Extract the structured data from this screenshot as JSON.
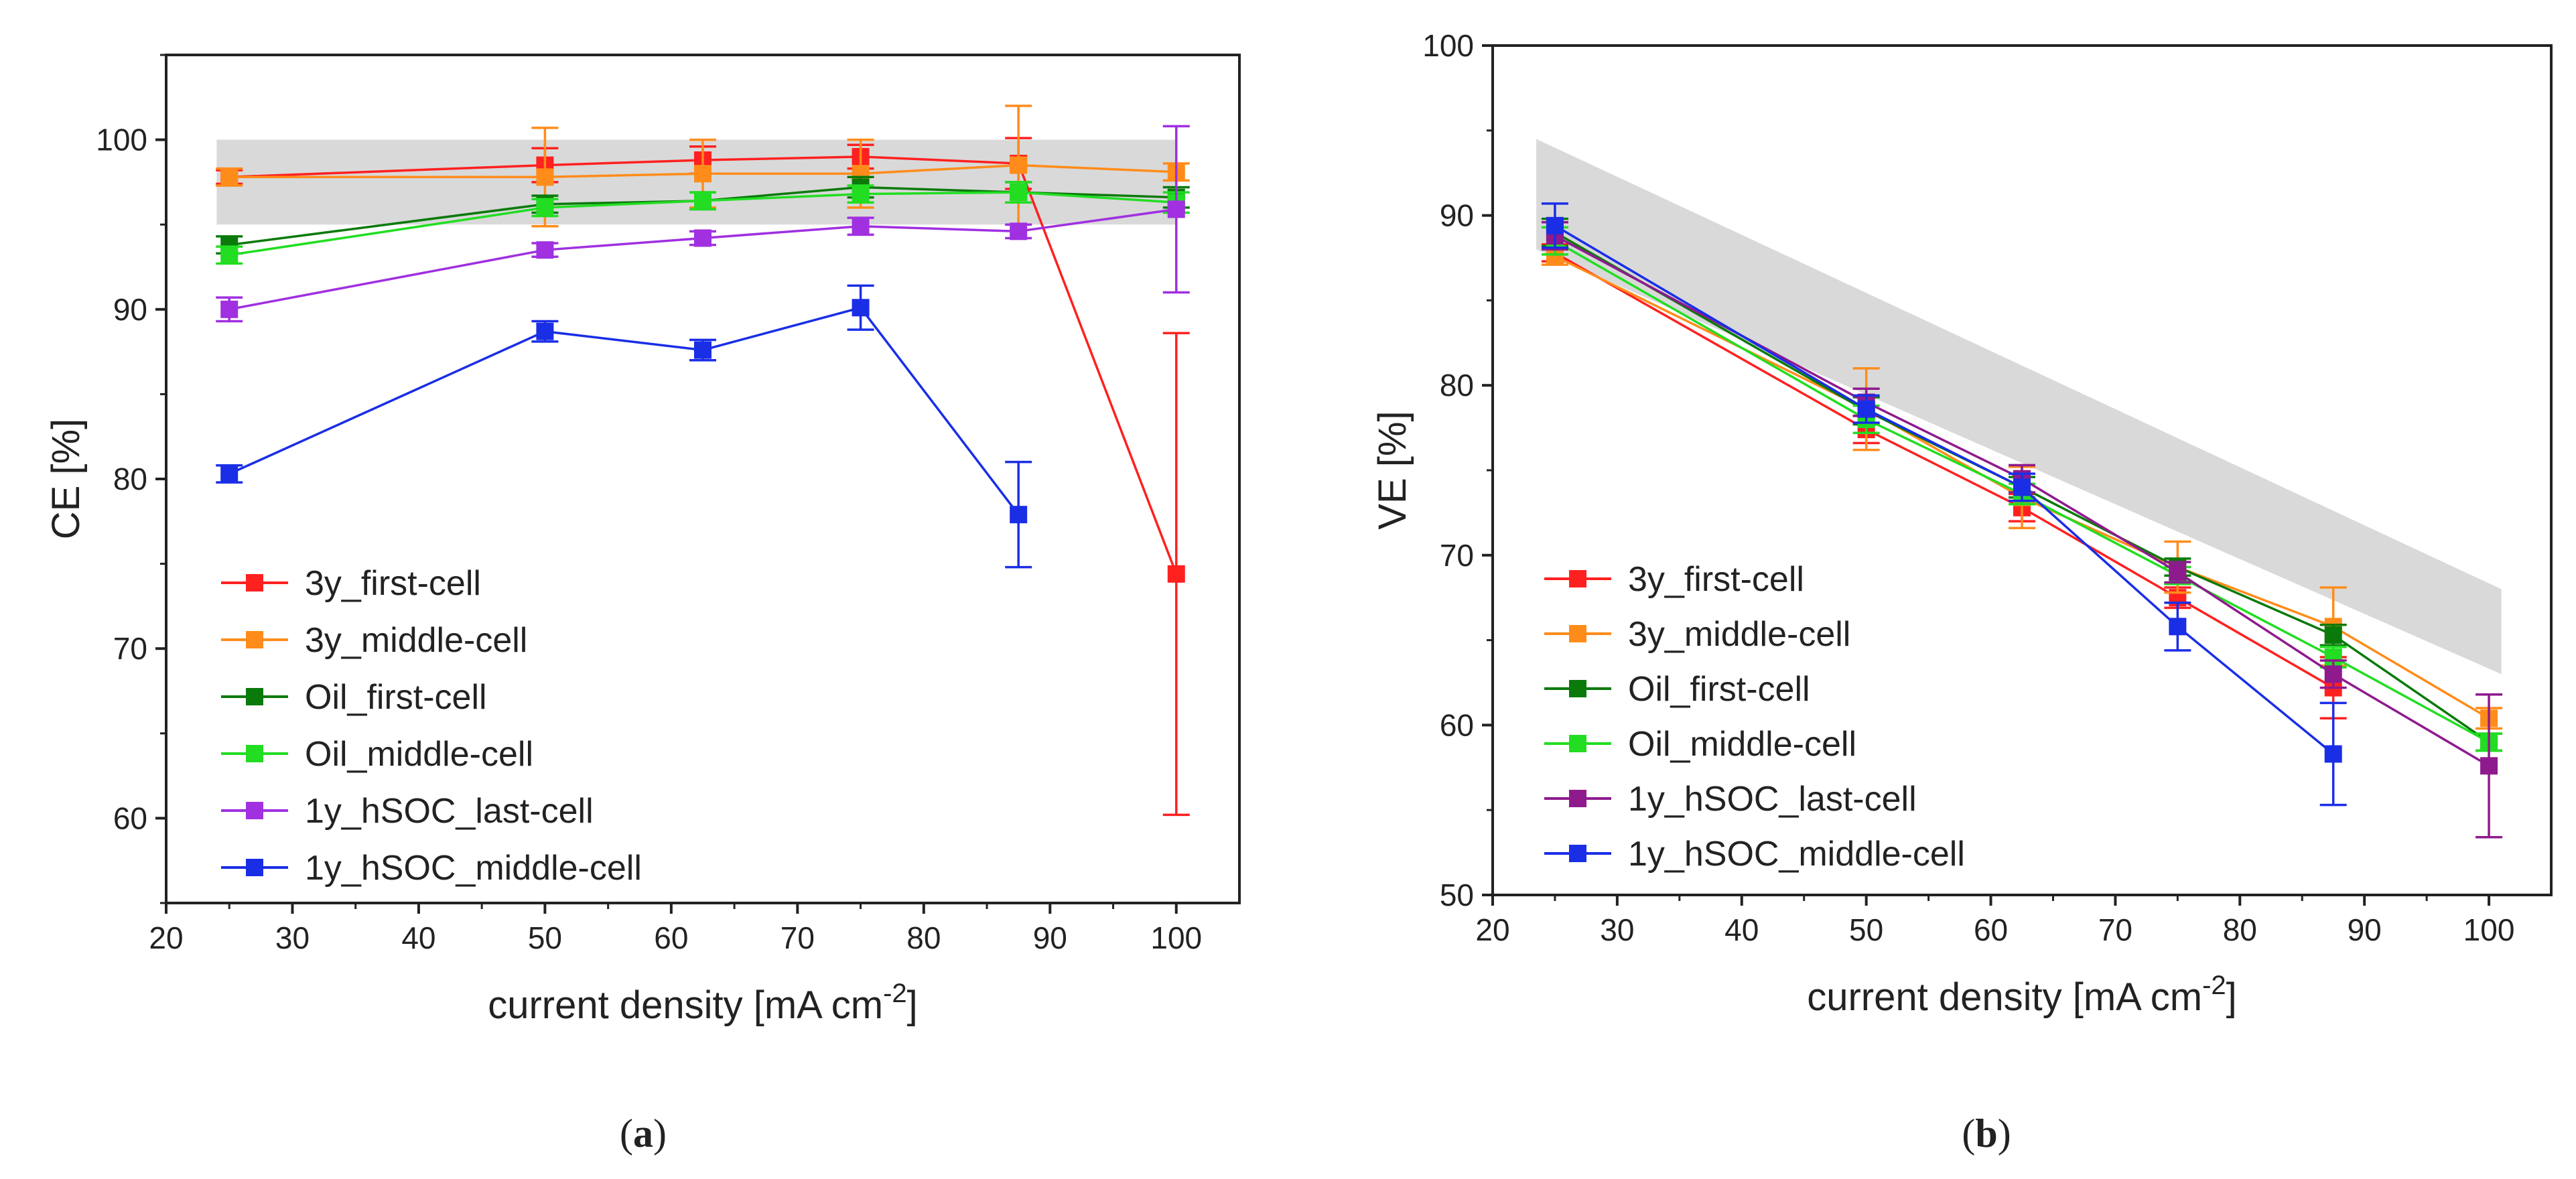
{
  "chart_data": [
    {
      "type": "line",
      "subfigure_label_open": "(",
      "subfigure_label_letter": "a",
      "subfigure_label_close": ")",
      "xlabel": "current density [mA cm",
      "xlabel_superscript": "-2",
      "xlabel_end": "]",
      "ylabel": "CE [%]",
      "xlim": [
        20,
        105
      ],
      "ylim": [
        55,
        105
      ],
      "xticks": [
        20,
        30,
        40,
        50,
        60,
        70,
        80,
        90,
        100
      ],
      "yticks": [
        60,
        70,
        80,
        90,
        100
      ],
      "band": {
        "x": [
          24,
          100
        ],
        "lower": [
          95,
          95
        ],
        "upper": [
          100,
          100
        ]
      },
      "legend_position": "bottom-left",
      "series": [
        {
          "name": "3y_first-cell",
          "color": "#ff2020",
          "x": [
            25,
            50,
            62.5,
            75,
            87.5,
            100
          ],
          "y": [
            97.8,
            98.5,
            98.8,
            99.0,
            98.6,
            74.4
          ],
          "err": [
            0.4,
            1.0,
            0.8,
            0.7,
            1.5,
            14.2
          ]
        },
        {
          "name": "3y_middle-cell",
          "color": "#ff8c1a",
          "x": [
            25,
            50,
            62.5,
            75,
            87.5,
            100
          ],
          "y": [
            97.8,
            97.8,
            98.0,
            98.0,
            98.5,
            98.1
          ],
          "err": [
            0.5,
            2.9,
            2.0,
            2.0,
            3.5,
            0.5
          ]
        },
        {
          "name": "Oil_first-cell",
          "color": "#0a7a0a",
          "x": [
            25,
            50,
            62.5,
            75,
            87.5,
            100
          ],
          "y": [
            93.8,
            96.2,
            96.4,
            97.2,
            96.9,
            96.6
          ],
          "err": [
            0.5,
            0.5,
            0.5,
            0.6,
            0.6,
            0.6
          ]
        },
        {
          "name": "Oil_middle-cell",
          "color": "#22dd22",
          "x": [
            25,
            50,
            62.5,
            75,
            87.5,
            100
          ],
          "y": [
            93.2,
            96.0,
            96.4,
            96.8,
            96.9,
            96.3
          ],
          "err": [
            0.5,
            0.5,
            0.5,
            0.5,
            0.6,
            0.6
          ]
        },
        {
          "name": "1y_hSOC_last-cell",
          "color": "#a030e0",
          "x": [
            25,
            50,
            62.5,
            75,
            87.5,
            100
          ],
          "y": [
            90.0,
            93.5,
            94.2,
            94.9,
            94.6,
            95.9
          ],
          "err": [
            0.7,
            0.4,
            0.4,
            0.5,
            0.4,
            4.9
          ]
        },
        {
          "name": "1y_hSOC_middle-cell",
          "color": "#1a2ee6",
          "x": [
            25,
            50,
            62.5,
            75,
            87.5
          ],
          "y": [
            80.3,
            88.7,
            87.6,
            90.1,
            77.9
          ],
          "err": [
            0.5,
            0.6,
            0.6,
            1.3,
            3.1
          ]
        }
      ]
    },
    {
      "type": "line",
      "subfigure_label_open": "(",
      "subfigure_label_letter": "b",
      "subfigure_label_close": ")",
      "xlabel": "current density [mA cm",
      "xlabel_superscript": "-2",
      "xlabel_end": "]",
      "ylabel": "VE [%]",
      "xlim": [
        20,
        105
      ],
      "ylim": [
        50,
        100
      ],
      "xticks": [
        20,
        30,
        40,
        50,
        60,
        70,
        80,
        90,
        100
      ],
      "yticks": [
        50,
        60,
        70,
        80,
        90,
        100
      ],
      "band": {
        "x": [
          23.5,
          101
        ],
        "lower": [
          88.0,
          63.0
        ],
        "upper": [
          94.5,
          68.0
        ]
      },
      "legend_position": "bottom-left",
      "series": [
        {
          "name": "3y_first-cell",
          "color": "#ff2020",
          "x": [
            25,
            50,
            62.5,
            75,
            87.5
          ],
          "y": [
            87.8,
            77.4,
            72.8,
            67.5,
            62.2
          ],
          "err": [
            0.5,
            0.8,
            0.8,
            0.6,
            1.8
          ]
        },
        {
          "name": "3y_middle-cell",
          "color": "#ff8c1a",
          "x": [
            25,
            50,
            62.5,
            75,
            87.5,
            100
          ],
          "y": [
            87.6,
            78.6,
            73.4,
            69.3,
            65.8,
            60.4
          ],
          "err": [
            0.5,
            2.4,
            1.8,
            1.5,
            2.3,
            0.6
          ]
        },
        {
          "name": "Oil_first-cell",
          "color": "#0a7a0a",
          "x": [
            25,
            50,
            62.5,
            75,
            87.5,
            100
          ],
          "y": [
            89.0,
            78.5,
            74.0,
            69.3,
            65.3,
            59.0
          ],
          "err": [
            0.8,
            0.8,
            0.6,
            0.5,
            0.6,
            0.5
          ]
        },
        {
          "name": "Oil_middle-cell",
          "color": "#22dd22",
          "x": [
            25,
            50,
            62.5,
            75,
            87.5,
            100
          ],
          "y": [
            88.5,
            78.0,
            73.6,
            68.8,
            64.0,
            59.0
          ],
          "err": [
            0.8,
            0.8,
            0.6,
            0.5,
            0.6,
            0.5
          ]
        },
        {
          "name": "1y_hSOC_last-cell",
          "color": "#8e1a8e",
          "x": [
            25,
            50,
            62.5,
            75,
            87.5,
            100
          ],
          "y": [
            88.8,
            79.0,
            74.5,
            69.0,
            63.0,
            57.6
          ],
          "err": [
            0.8,
            0.8,
            0.8,
            0.6,
            0.8,
            4.2
          ]
        },
        {
          "name": "1y_hSOC_middle-cell",
          "color": "#1a2ee6",
          "x": [
            25,
            50,
            62.5,
            75,
            87.5
          ],
          "y": [
            89.4,
            78.6,
            74.0,
            65.8,
            58.3
          ],
          "err": [
            1.3,
            0.8,
            0.8,
            1.4,
            3.0
          ]
        }
      ]
    }
  ]
}
